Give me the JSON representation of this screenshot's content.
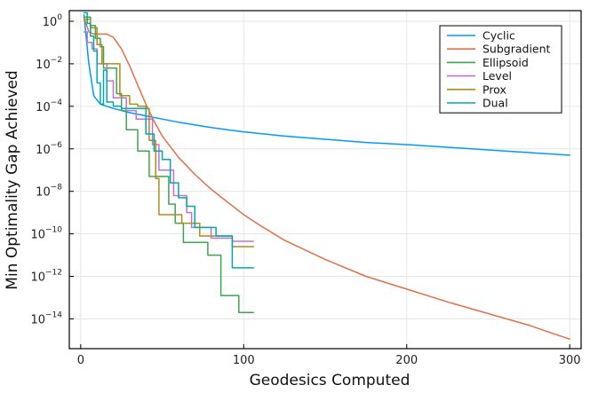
{
  "chart_data": {
    "type": "line",
    "title": "",
    "xlabel": "Geodesics Computed",
    "ylabel": "Min Optimality Gap Achieved",
    "xscale": "linear",
    "yscale": "log10",
    "xlim": [
      -7,
      307
    ],
    "ylim_exponent": [
      -15.4,
      0.5
    ],
    "x_ticks": [
      0,
      100,
      200,
      300
    ],
    "x_tick_labels": [
      "0",
      "100",
      "200",
      "300"
    ],
    "y_tick_exponents": [
      0,
      -2,
      -4,
      -6,
      -8,
      -10,
      -12,
      -14
    ],
    "y_tick_labels": [
      {
        "base": "10",
        "exp": "0"
      },
      {
        "base": "10",
        "exp": "−2"
      },
      {
        "base": "10",
        "exp": "−4"
      },
      {
        "base": "10",
        "exp": "−6"
      },
      {
        "base": "10",
        "exp": "−8"
      },
      {
        "base": "10",
        "exp": "−10"
      },
      {
        "base": "10",
        "exp": "−12"
      },
      {
        "base": "10",
        "exp": "−14"
      }
    ],
    "grid": true,
    "legend_position": "top-right",
    "series": [
      {
        "name": "Cyclic",
        "color": "#009AFA",
        "style": "line",
        "points_log10": [
          [
            2,
            0.3
          ],
          [
            5,
            -2
          ],
          [
            8,
            -3.5
          ],
          [
            12,
            -3.9
          ],
          [
            20,
            -4.1
          ],
          [
            30,
            -4.3
          ],
          [
            40,
            -4.45
          ],
          [
            50,
            -4.6
          ],
          [
            60,
            -4.75
          ],
          [
            80,
            -5.0
          ],
          [
            100,
            -5.2
          ],
          [
            125,
            -5.4
          ],
          [
            150,
            -5.55
          ],
          [
            175,
            -5.7
          ],
          [
            200,
            -5.8
          ],
          [
            250,
            -6.05
          ],
          [
            300,
            -6.3
          ]
        ]
      },
      {
        "name": "Subgradient",
        "color": "#E36F47",
        "style": "line",
        "points_log10": [
          [
            2,
            0.2
          ],
          [
            5,
            -0.5
          ],
          [
            8,
            -0.6
          ],
          [
            16,
            -0.6
          ],
          [
            20,
            -0.75
          ],
          [
            25,
            -1.3
          ],
          [
            30,
            -2.1
          ],
          [
            35,
            -3.0
          ],
          [
            40,
            -3.9
          ],
          [
            45,
            -4.7
          ],
          [
            50,
            -5.4
          ],
          [
            60,
            -6.4
          ],
          [
            70,
            -7.2
          ],
          [
            80,
            -7.9
          ],
          [
            90,
            -8.5
          ],
          [
            100,
            -9.1
          ],
          [
            110,
            -9.6
          ],
          [
            125,
            -10.3
          ],
          [
            150,
            -11.2
          ],
          [
            175,
            -12.0
          ],
          [
            200,
            -12.6
          ],
          [
            225,
            -13.2
          ],
          [
            250,
            -13.75
          ],
          [
            275,
            -14.3
          ],
          [
            290,
            -14.7
          ],
          [
            300,
            -14.95
          ]
        ]
      },
      {
        "name": "Ellipsoid",
        "color": "#3EA44E",
        "style": "step",
        "points_log10": [
          [
            2,
            0.2
          ],
          [
            6,
            -0.2
          ],
          [
            9,
            -0.8
          ],
          [
            12,
            -1.2
          ],
          [
            14,
            -2.2
          ],
          [
            20,
            -2.2
          ],
          [
            22,
            -3.4
          ],
          [
            25,
            -4.2
          ],
          [
            28,
            -5.1
          ],
          [
            33,
            -5.1
          ],
          [
            35,
            -6.1
          ],
          [
            40,
            -6.1
          ],
          [
            42,
            -7.3
          ],
          [
            50,
            -7.3
          ],
          [
            54,
            -8.6
          ],
          [
            58,
            -9.5
          ],
          [
            63,
            -10.4
          ],
          [
            75,
            -10.4
          ],
          [
            78,
            -11.0
          ],
          [
            83,
            -11.0
          ],
          [
            86,
            -12.9
          ],
          [
            93,
            -12.9
          ],
          [
            97,
            -13.7
          ],
          [
            106,
            -13.7
          ]
        ]
      },
      {
        "name": "Level",
        "color": "#C271D2",
        "style": "step",
        "points_log10": [
          [
            2,
            -0.5
          ],
          [
            4,
            -1.0
          ],
          [
            7,
            -1.3
          ],
          [
            10,
            -2.0
          ],
          [
            14,
            -2.0
          ],
          [
            16,
            -2.8
          ],
          [
            20,
            -3.6
          ],
          [
            25,
            -3.6
          ],
          [
            28,
            -4.2
          ],
          [
            32,
            -4.2
          ],
          [
            34,
            -4.6
          ],
          [
            40,
            -4.6
          ],
          [
            44,
            -5.8
          ],
          [
            48,
            -7.0
          ],
          [
            55,
            -7.0
          ],
          [
            57,
            -8.2
          ],
          [
            62,
            -8.2
          ],
          [
            65,
            -9.0
          ],
          [
            68,
            -9.7
          ],
          [
            77,
            -9.7
          ],
          [
            80,
            -10.2
          ],
          [
            90,
            -10.2
          ],
          [
            93,
            -10.35
          ],
          [
            106,
            -10.35
          ]
        ]
      },
      {
        "name": "Prox",
        "color": "#AC8D18",
        "style": "step",
        "points_log10": [
          [
            2,
            0.1
          ],
          [
            6,
            -0.3
          ],
          [
            10,
            -1.1
          ],
          [
            13,
            -2.0
          ],
          [
            22,
            -2.0
          ],
          [
            24,
            -3.5
          ],
          [
            30,
            -3.9
          ],
          [
            35,
            -4.0
          ],
          [
            40,
            -4.1
          ],
          [
            42,
            -5.6
          ],
          [
            46,
            -7.4
          ],
          [
            48,
            -9.1
          ],
          [
            60,
            -9.1
          ],
          [
            62,
            -9.5
          ],
          [
            70,
            -9.5
          ],
          [
            73,
            -10.1
          ],
          [
            90,
            -10.1
          ],
          [
            93,
            -10.6
          ],
          [
            106,
            -10.6
          ]
        ]
      },
      {
        "name": "Dual",
        "color": "#00A9AD",
        "style": "step",
        "points_log10": [
          [
            2,
            0.4
          ],
          [
            4,
            -0.1
          ],
          [
            6,
            -0.7
          ],
          [
            8,
            -1.4
          ],
          [
            10,
            -2.9
          ],
          [
            12,
            -3.9
          ],
          [
            14,
            -2.3
          ],
          [
            16,
            -3.8
          ],
          [
            20,
            -4.0
          ],
          [
            25,
            -4.1
          ],
          [
            35,
            -4.1
          ],
          [
            40,
            -5.3
          ],
          [
            45,
            -6.1
          ],
          [
            50,
            -6.5
          ],
          [
            55,
            -7.6
          ],
          [
            60,
            -8.3
          ],
          [
            65,
            -8.7
          ],
          [
            70,
            -9.7
          ],
          [
            80,
            -9.7
          ],
          [
            83,
            -10.1
          ],
          [
            90,
            -10.1
          ],
          [
            93,
            -11.6
          ],
          [
            106,
            -11.6
          ]
        ]
      }
    ]
  }
}
